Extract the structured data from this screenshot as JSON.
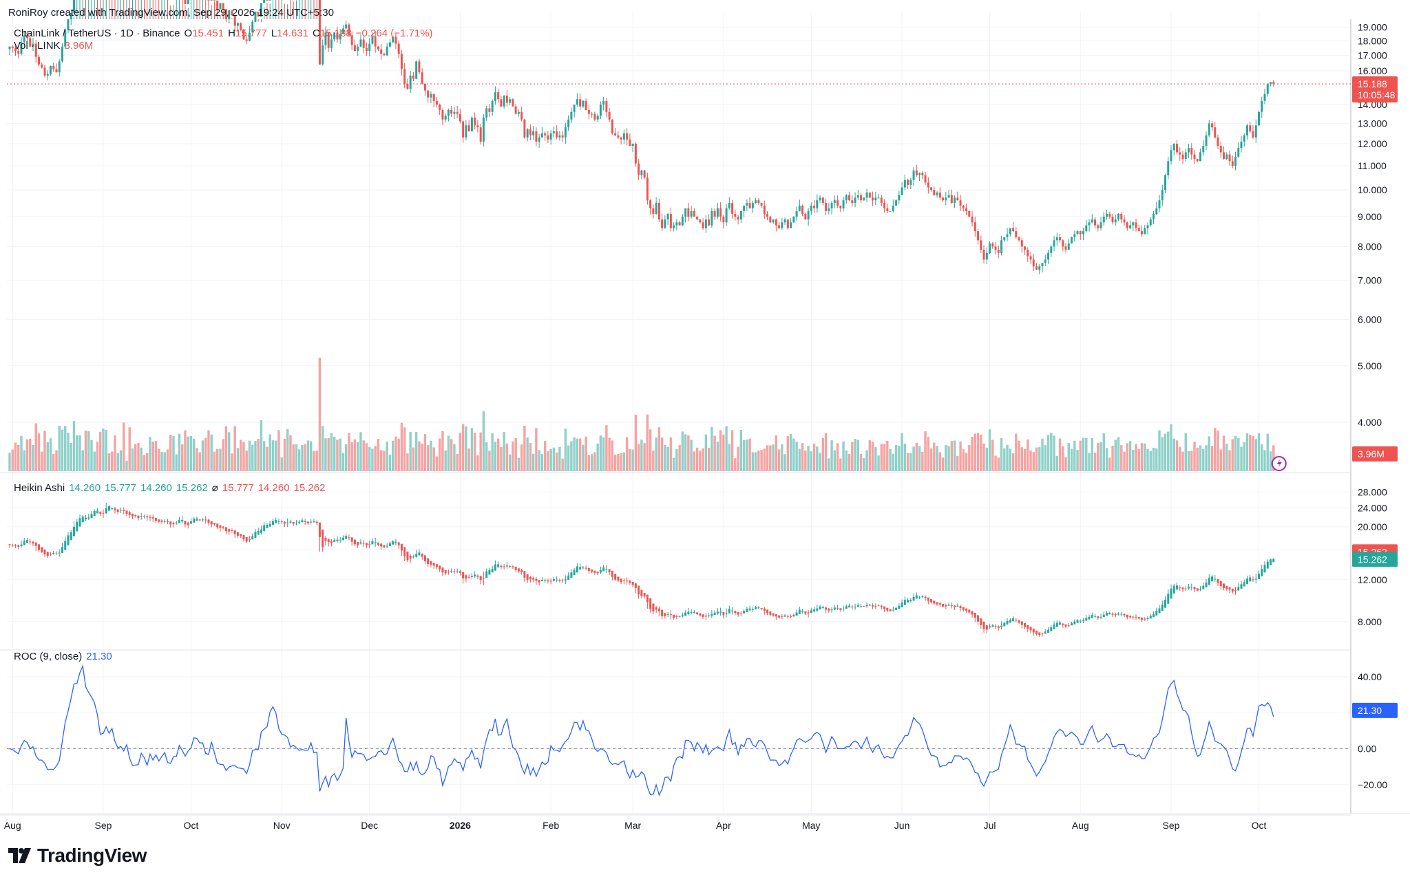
{
  "header": {
    "attribution": "RoniRoy created with TradingView.com, Sep 29, 2026 19:24 UTC+5:30"
  },
  "legend": {
    "symbol": "ChainLink / TetherUS · 1D · Binance",
    "open_label": "O",
    "open": "15.451",
    "high_label": "H",
    "high": "15.777",
    "low_label": "L",
    "low": "14.631",
    "close_label": "C",
    "close": "15.188",
    "change": "−0.264 (−1.71%)",
    "vol_label": "Vol · LINK",
    "vol": "3.96M",
    "ha_label": "Heikin Ashi",
    "ha_o": "14.260",
    "ha_h": "15.777",
    "ha_l": "14.260",
    "ha_c": "15.262",
    "ha_sep": "⌀",
    "ha2_h": "15.777",
    "ha2_l": "14.260",
    "ha2_c": "15.262",
    "roc_label": "ROC (9, close)",
    "roc_value": "21.30"
  },
  "badges": {
    "price": "15.188",
    "countdown": "10:05:48",
    "vol": "3.96M",
    "ha_red": "15.262",
    "ha_green": "15.262",
    "roc": "21.30"
  },
  "brand": {
    "name": "TradingView",
    "logo_icon": "tradingview-logo-icon"
  },
  "colors": {
    "up": "#26a69a",
    "down": "#ef5350",
    "roc": "#2962ff",
    "vol_up": "#8fd0c9",
    "vol_down": "#f5a3a2"
  },
  "chart_data": {
    "type": "candlestick",
    "symbol": "LINKUSDT",
    "interval": "1D",
    "x_labels": [
      "Aug",
      "Sep",
      "Oct",
      "Nov",
      "Dec",
      "2026",
      "Feb",
      "Mar",
      "Apr",
      "May",
      "Jun",
      "Jul",
      "Aug",
      "Sep",
      "Oct"
    ],
    "price_axis": {
      "ticks": [
        "19.000",
        "18.000",
        "17.000",
        "16.000",
        "15.000",
        "14.000",
        "13.000",
        "12.000",
        "11.000",
        "10.000",
        "9.000",
        "8.000",
        "7.000",
        "6.000",
        "5.000",
        "4.000"
      ],
      "scale": "log",
      "ylim": [
        3.3,
        19.6
      ]
    },
    "ha_axis": {
      "ticks": [
        "28.000",
        "24.000",
        "20.000",
        "16.000",
        "12.000",
        "8.000"
      ],
      "scale": "log",
      "ylim": [
        6.5,
        31
      ]
    },
    "roc_axis": {
      "ticks": [
        "40.00",
        "20.00",
        "0.00",
        "−20.00"
      ],
      "ylim": [
        -35,
        53
      ]
    },
    "price_series": {
      "name": "LINK close (approx.)",
      "closes": [
        17.6,
        17.5,
        17.3,
        17.1,
        17.9,
        18.4,
        18.2,
        17.6,
        17.8,
        16.9,
        16.4,
        16.2,
        15.7,
        15.8,
        16.3,
        16.1,
        15.9,
        16.6,
        17.6,
        18.8,
        19.6,
        20.1,
        21.5,
        22.2,
        22.9,
        23.2,
        22.3,
        23.1,
        24.2,
        24.6,
        23.9,
        23.2,
        24.1,
        25.7,
        25.2,
        24.8,
        24.0,
        24.3,
        24.9,
        23.6,
        23.7,
        22.8,
        23.3,
        22.9,
        22.6,
        23.4,
        23.1,
        22.6,
        22.9,
        22.2,
        22.0,
        21.7,
        21.9,
        22.1,
        21.6,
        21.2,
        21.6,
        21.9,
        22.6,
        21.8,
        20.8,
        21.6,
        22.2,
        22.9,
        22.4,
        22.3,
        22.6,
        22.0,
        21.1,
        21.6,
        21.1,
        20.4,
        20.9,
        20.4,
        19.6,
        20.3,
        19.9,
        19.1,
        19.3,
        18.8,
        18.1,
        18.0,
        18.6,
        19.4,
        20.2,
        19.8,
        20.9,
        21.4,
        21.1,
        21.8,
        22.2,
        22.3,
        21.6,
        21.8,
        21.3,
        22.2,
        21.6,
        21.5,
        21.9,
        22.0,
        22.2,
        21.4,
        21.6,
        22.0,
        21.7,
        21.2,
        16.4,
        17.7,
        18.6,
        17.5,
        18.1,
        18.6,
        18.1,
        18.5,
        18.9,
        19.2,
        18.4,
        17.7,
        17.3,
        17.6,
        18.1,
        17.5,
        17.3,
        17.8,
        18.3,
        17.6,
        17.4,
        17.1,
        17.0,
        17.6,
        17.9,
        18.3,
        17.8,
        17.1,
        16.1,
        15.2,
        14.9,
        15.7,
        15.5,
        16.6,
        15.9,
        15.2,
        14.8,
        14.4,
        14.6,
        14.2,
        14.0,
        13.7,
        13.2,
        13.4,
        13.7,
        13.5,
        13.6,
        13.5,
        13.1,
        12.3,
        12.9,
        12.6,
        13.3,
        12.9,
        12.8,
        12.1,
        13.3,
        13.8,
        13.6,
        14.2,
        14.7,
        14.3,
        13.9,
        14.5,
        14.1,
        14.3,
        13.9,
        13.5,
        13.6,
        13.2,
        12.3,
        12.7,
        12.4,
        12.6,
        12.1,
        12.3,
        12.5,
        12.4,
        12.2,
        12.5,
        12.6,
        12.3,
        12.4,
        12.3,
        12.8,
        13.2,
        13.6,
        14.0,
        14.3,
        13.9,
        14.2,
        13.7,
        13.5,
        13.5,
        13.2,
        13.4,
        14.0,
        14.2,
        13.6,
        13.2,
        12.5,
        12.4,
        12.3,
        12.2,
        12.5,
        12.2,
        11.9,
        12.0,
        11.1,
        10.6,
        10.8,
        10.5,
        9.6,
        9.3,
        9.1,
        9.5,
        8.9,
        8.6,
        8.9,
        9.1,
        8.6,
        8.7,
        8.8,
        8.7,
        9.0,
        9.3,
        9.0,
        9.2,
        9.0,
        8.9,
        8.8,
        8.6,
        8.9,
        8.7,
        9.2,
        9.0,
        9.3,
        9.0,
        8.8,
        9.3,
        9.5,
        9.1,
        9.0,
        8.9,
        9.2,
        9.4,
        9.5,
        9.3,
        9.5,
        9.6,
        9.5,
        9.4,
        9.1,
        9.0,
        8.8,
        8.9,
        8.7,
        8.6,
        8.8,
        8.9,
        8.6,
        8.8,
        9.0,
        9.2,
        9.4,
        9.1,
        8.9,
        9.2,
        9.4,
        9.3,
        9.6,
        9.7,
        9.5,
        9.2,
        9.3,
        9.5,
        9.6,
        9.4,
        9.3,
        9.6,
        9.8,
        9.6,
        9.5,
        9.7,
        9.8,
        9.6,
        9.7,
        9.9,
        9.7,
        9.6,
        9.7,
        9.7,
        9.5,
        9.3,
        9.2,
        9.2,
        9.4,
        9.6,
        9.8,
        10.1,
        10.4,
        10.2,
        10.4,
        10.8,
        10.6,
        10.7,
        10.6,
        10.3,
        10.1,
        10.0,
        9.8,
        9.9,
        9.7,
        9.6,
        9.7,
        9.8,
        9.5,
        9.7,
        9.6,
        9.4,
        9.3,
        9.2,
        9.0,
        8.8,
        8.5,
        8.2,
        7.9,
        7.6,
        7.8,
        8.1,
        8.0,
        7.9,
        7.8,
        8.2,
        8.3,
        8.4,
        8.6,
        8.5,
        8.3,
        8.2,
        8.0,
        7.9,
        7.7,
        7.6,
        7.4,
        7.3,
        7.4,
        7.5,
        7.6,
        7.8,
        8.0,
        8.2,
        8.3,
        8.2,
        8.0,
        7.9,
        8.1,
        8.3,
        8.4,
        8.5,
        8.4,
        8.5,
        8.7,
        8.8,
        8.9,
        8.7,
        8.6,
        8.8,
        9.0,
        9.1,
        9.0,
        8.8,
        8.9,
        9.1,
        8.9,
        8.8,
        8.6,
        8.7,
        8.8,
        8.6,
        8.5,
        8.4,
        8.6,
        8.7,
        8.9,
        9.1,
        9.3,
        9.6,
        10.0,
        10.6,
        11.2,
        11.7,
        12.0,
        11.6,
        11.5,
        11.3,
        11.6,
        11.8,
        11.5,
        11.3,
        11.2,
        11.6,
        11.9,
        12.4,
        13.0,
        12.8,
        12.3,
        11.9,
        11.6,
        11.3,
        11.5,
        11.2,
        11.0,
        11.4,
        11.8,
        12.1,
        12.4,
        12.9,
        12.6,
        12.3,
        12.9,
        13.6,
        14.2,
        14.6,
        15.2,
        15.3,
        15.19
      ]
    },
    "heikin_ashi_series": {
      "name": "Heikin Ashi",
      "last": [
        14.26,
        15.777,
        14.26,
        15.262
      ]
    },
    "roc_series": {
      "name": "ROC (9, close)",
      "last": 21.3
    }
  }
}
